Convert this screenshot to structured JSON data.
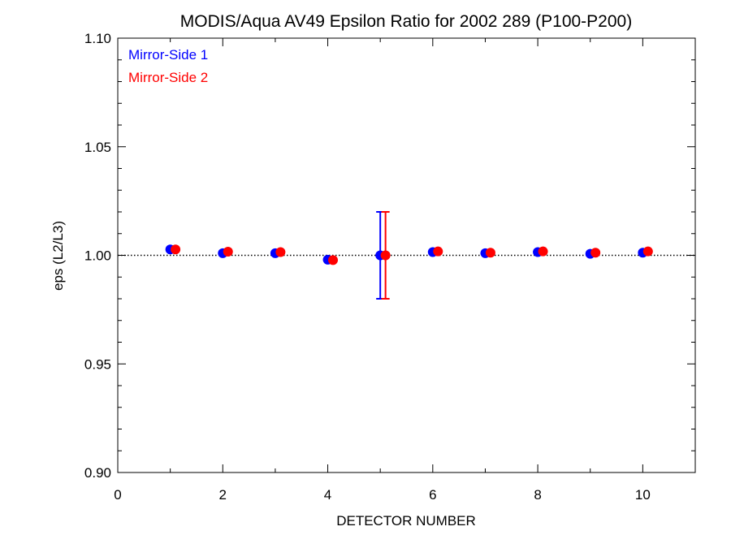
{
  "chart_data": {
    "type": "scatter",
    "title": "MODIS/Aqua AV49 Epsilon Ratio for 2002 289 (P100-P200)",
    "xlabel": "DETECTOR NUMBER",
    "ylabel": "eps (L2/L3)",
    "xlim": [
      0,
      11
    ],
    "ylim": [
      0.9,
      1.1
    ],
    "xticks": [
      0,
      2,
      4,
      6,
      8,
      10
    ],
    "xtick_labels": [
      "0",
      "2",
      "4",
      "6",
      "8",
      "10"
    ],
    "yticks": [
      0.9,
      0.95,
      1.0,
      1.05,
      1.1
    ],
    "ytick_labels": [
      "0.90",
      "0.95",
      "1.00",
      "1.05",
      "1.10"
    ],
    "reference_line": {
      "y": 1.0,
      "style": "dotted"
    },
    "legend_position": "top-left",
    "series": [
      {
        "name": "Mirror-Side 1",
        "color": "#0000ff",
        "x": [
          1,
          2,
          3,
          4,
          5,
          6,
          7,
          8,
          9,
          10
        ],
        "y": [
          1.0027,
          1.001,
          1.001,
          0.998,
          1.0,
          1.0015,
          1.001,
          1.0015,
          1.0007,
          1.0012
        ],
        "error_bars": [
          {
            "x": 5,
            "low": 0.98,
            "high": 1.02
          }
        ]
      },
      {
        "name": "Mirror-Side 2",
        "color": "#ff0000",
        "x": [
          1.1,
          2.1,
          3.1,
          4.1,
          5.1,
          6.1,
          7.1,
          8.1,
          9.1,
          10.1
        ],
        "y": [
          1.0027,
          1.0017,
          1.0015,
          0.9978,
          1.0,
          1.0018,
          1.0012,
          1.0018,
          1.0012,
          1.0018
        ],
        "error_bars": [
          {
            "x": 5.1,
            "low": 0.98,
            "high": 1.02
          }
        ]
      }
    ]
  }
}
